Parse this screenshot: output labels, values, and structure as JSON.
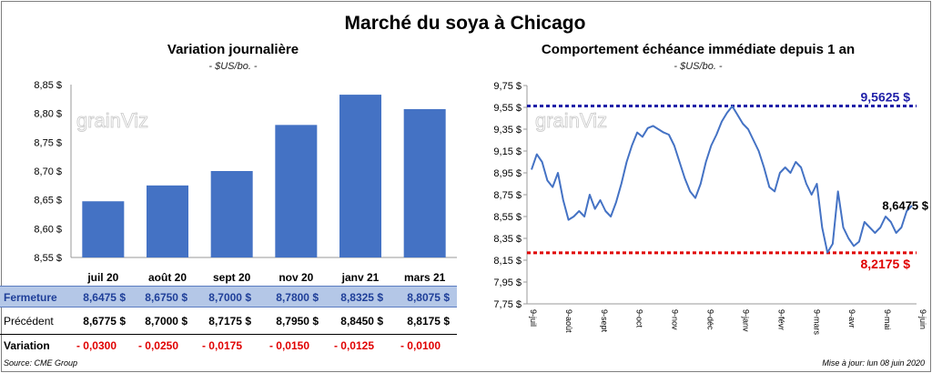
{
  "title": "Marché du soya à Chicago",
  "left": {
    "title": "Variation  journalière",
    "subtitle": "- $US/bo. -"
  },
  "right": {
    "title": "Comportement  échéance immédiate depuis 1 an",
    "subtitle": "- $US/bo. -",
    "high_label": "9,5625 $",
    "low_label": "8,2175 $",
    "last_label": "8,6475 $",
    "colors": {
      "high": "#1f1fa8",
      "low": "#e00000",
      "line": "#4472c4"
    }
  },
  "table": {
    "row_labels": {
      "close": "Fermeture",
      "previous": "Précédent",
      "change": "Variation"
    },
    "close": [
      "8,6475  $",
      "8,6750  $",
      "8,7000  $",
      "8,7800  $",
      "8,8325  $",
      "8,8075  $"
    ],
    "previous": [
      "8,6775  $",
      "8,7000  $",
      "8,7175  $",
      "8,7950  $",
      "8,8450  $",
      "8,8175  $"
    ],
    "change": [
      "- 0,0300",
      "- 0,0250",
      "- 0,0175",
      "- 0,0150",
      "- 0,0125",
      "- 0,0100"
    ]
  },
  "footer": {
    "source": "Source: CME Group",
    "update": "Mise à jour: lun 08 juin 2020"
  },
  "chart_data": [
    {
      "type": "bar",
      "categories": [
        "juil 20",
        "août 20",
        "sept 20",
        "nov 20",
        "janv 21",
        "mars 21"
      ],
      "values": [
        8.6475,
        8.675,
        8.7,
        8.78,
        8.8325,
        8.8075
      ],
      "ylim": [
        8.55,
        8.85
      ],
      "yticks": [
        "8,55 $",
        "8,60 $",
        "8,65 $",
        "8,70 $",
        "8,75 $",
        "8,80 $",
        "8,85 $"
      ],
      "color": "#4472c4",
      "watermark": "grainViz"
    },
    {
      "type": "line",
      "ylim": [
        7.75,
        9.75
      ],
      "yticks": [
        "7,75 $",
        "7,95 $",
        "8,15 $",
        "8,35 $",
        "8,55 $",
        "8,75 $",
        "8,95 $",
        "9,15 $",
        "9,35 $",
        "9,55 $",
        "9,75 $"
      ],
      "xticks": [
        "9-juil",
        "9-août",
        "9-sept",
        "9-oct",
        "9-nov",
        "9-déc",
        "9-janv",
        "9-févr",
        "9-mars",
        "9-avr",
        "9-mai",
        "9-juin"
      ],
      "series_values": [
        8.98,
        9.12,
        9.05,
        8.88,
        8.82,
        8.95,
        8.7,
        8.52,
        8.55,
        8.6,
        8.55,
        8.75,
        8.62,
        8.7,
        8.6,
        8.55,
        8.68,
        8.85,
        9.05,
        9.2,
        9.32,
        9.28,
        9.36,
        9.38,
        9.35,
        9.32,
        9.3,
        9.2,
        9.05,
        8.9,
        8.78,
        8.72,
        8.85,
        9.05,
        9.2,
        9.3,
        9.42,
        9.5,
        9.56,
        9.48,
        9.4,
        9.35,
        9.25,
        9.15,
        9.0,
        8.82,
        8.78,
        8.95,
        9.0,
        8.95,
        9.05,
        9.0,
        8.85,
        8.75,
        8.85,
        8.45,
        8.22,
        8.3,
        8.78,
        8.45,
        8.35,
        8.28,
        8.32,
        8.5,
        8.45,
        8.4,
        8.45,
        8.55,
        8.5,
        8.4,
        8.45,
        8.6,
        8.65
      ],
      "high": 9.5625,
      "low": 8.2175,
      "last": 8.6475,
      "watermark": "grainViz"
    }
  ]
}
